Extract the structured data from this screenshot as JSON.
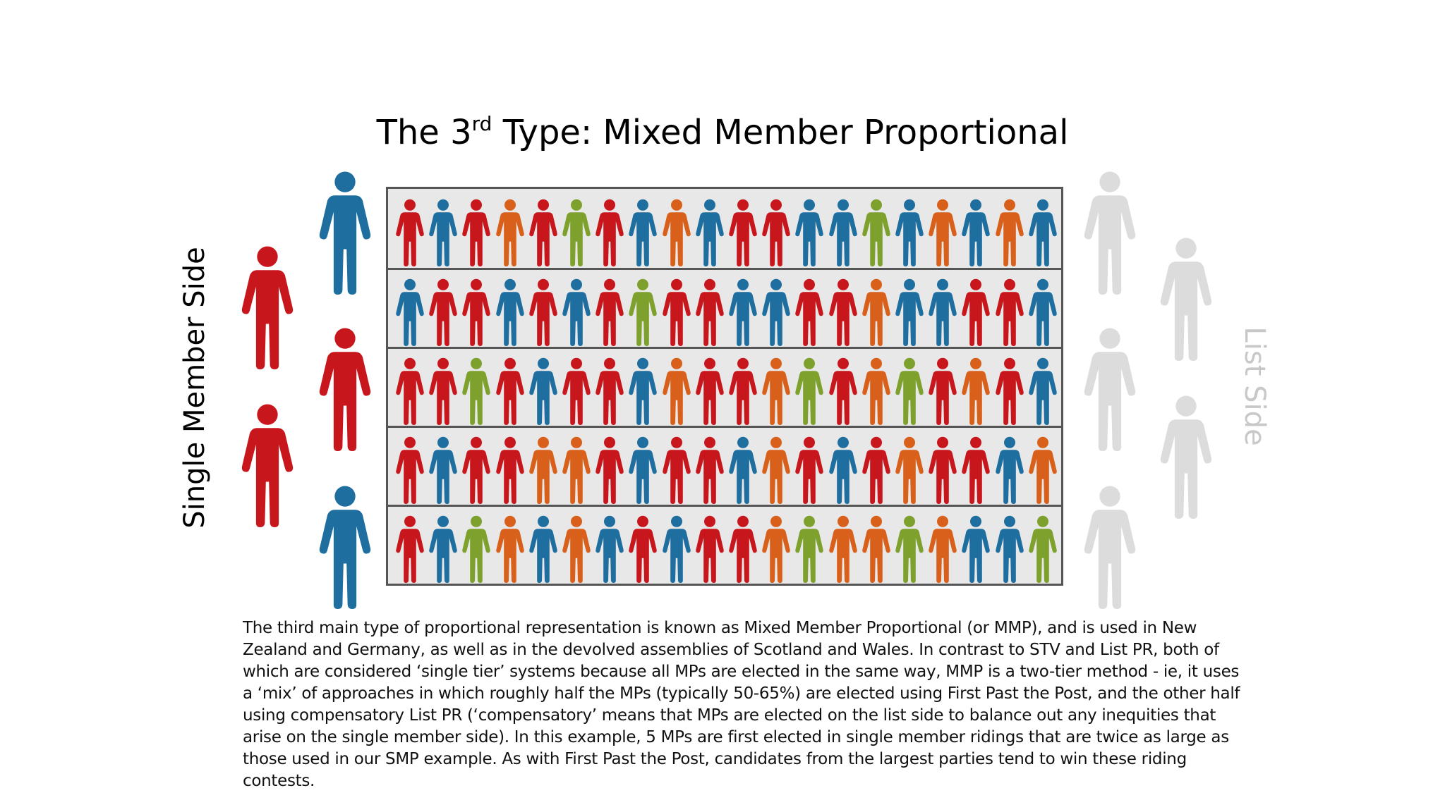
{
  "title": {
    "prefix": "The 3",
    "sup": "rd",
    "suffix": " Type: Mixed Member Proportional"
  },
  "labels": {
    "single_member_side": "Single Member Side",
    "list_side": "List Side"
  },
  "colors": {
    "red": "#c8161d",
    "blue": "#1e6e9f",
    "green": "#7da12c",
    "orange": "#d9601a",
    "grey": "#dcdcdc"
  },
  "single_member_figures": [
    "red",
    "blue",
    "red",
    "red",
    "blue"
  ],
  "list_figures": [
    "grey",
    "grey",
    "grey",
    "grey",
    "grey",
    "grey",
    "grey"
  ],
  "grid_rows": [
    [
      "red",
      "blue",
      "red",
      "orange",
      "red",
      "green",
      "red",
      "blue",
      "orange",
      "blue",
      "red",
      "red",
      "blue",
      "blue",
      "green",
      "blue",
      "orange",
      "blue",
      "orange",
      "blue"
    ],
    [
      "blue",
      "red",
      "red",
      "blue",
      "red",
      "blue",
      "red",
      "green",
      "red",
      "red",
      "blue",
      "blue",
      "red",
      "red",
      "orange",
      "blue",
      "blue",
      "red",
      "red",
      "blue"
    ],
    [
      "red",
      "red",
      "green",
      "red",
      "blue",
      "red",
      "red",
      "blue",
      "orange",
      "red",
      "red",
      "orange",
      "green",
      "red",
      "orange",
      "green",
      "red",
      "orange",
      "red",
      "blue"
    ],
    [
      "red",
      "blue",
      "red",
      "red",
      "orange",
      "orange",
      "red",
      "blue",
      "red",
      "red",
      "blue",
      "orange",
      "red",
      "blue",
      "red",
      "orange",
      "red",
      "red",
      "blue",
      "orange"
    ],
    [
      "red",
      "blue",
      "green",
      "orange",
      "blue",
      "orange",
      "blue",
      "red",
      "blue",
      "red",
      "red",
      "orange",
      "green",
      "orange",
      "orange",
      "green",
      "orange",
      "blue",
      "blue",
      "green"
    ]
  ],
  "description": "The third main type of proportional representation is known as Mixed Member Proportional (or MMP), and is used in New Zealand and Germany, as well as in the devolved assemblies of Scotland and Wales.  In contrast to STV and List PR, both of which are considered ‘single tier’ systems because all MPs are elected in the same way, MMP is a two-tier method - ie, it uses a ‘mix’ of approaches in which roughly half the MPs (typically 50-65%) are elected using First Past the Post, and the other half using compensatory List PR (‘compensatory’ means that MPs are elected on the list side to balance out any inequities that arise on the single member side).  In this example, 5 MPs are first elected in single member ridings that are twice as large as those used in our SMP example.  As with First Past the Post, candidates from the largest parties tend to win these riding contests."
}
